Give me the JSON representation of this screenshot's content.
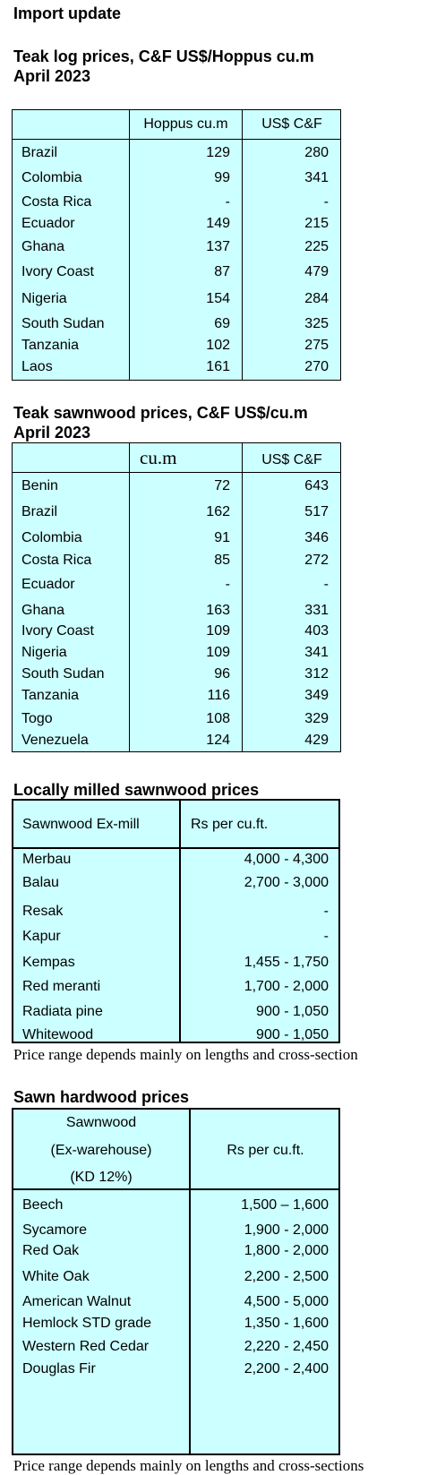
{
  "page_title": "Import update",
  "teak_log": {
    "title": "Teak log prices, C&F US$/Hoppus cu.m",
    "date": "April 2023",
    "col1_header": "Hoppus cu.m",
    "col2_header": "US$ C&F",
    "rows": [
      {
        "country": "Brazil",
        "hoppus": "129",
        "usd": "280"
      },
      {
        "country": "Colombia",
        "hoppus": "99",
        "usd": "341"
      },
      {
        "country": "Costa Rica",
        "hoppus": "-",
        "usd": "-"
      },
      {
        "country": "Ecuador",
        "hoppus": "149",
        "usd": "215"
      },
      {
        "country": "Ghana",
        "hoppus": "137",
        "usd": "225"
      },
      {
        "country": "Ivory Coast",
        "hoppus": "87",
        "usd": "479"
      },
      {
        "country": "Nigeria",
        "hoppus": "154",
        "usd": "284"
      },
      {
        "country": "South Sudan",
        "hoppus": "69",
        "usd": "325"
      },
      {
        "country": "Tanzania",
        "hoppus": "102",
        "usd": "275"
      },
      {
        "country": "Laos",
        "hoppus": "161",
        "usd": "270"
      }
    ]
  },
  "teak_sawn": {
    "title": "Teak sawnwood prices, C&F US$/cu.m",
    "date": "April 2023",
    "col1_header": "cu.m",
    "col2_header": "US$ C&F",
    "rows": [
      {
        "country": "Benin",
        "cum": "72",
        "usd": "643"
      },
      {
        "country": "Brazil",
        "cum": "162",
        "usd": "517"
      },
      {
        "country": "Colombia",
        "cum": "91",
        "usd": "346"
      },
      {
        "country": "Costa Rica",
        "cum": "85",
        "usd": "272"
      },
      {
        "country": "Ecuador",
        "cum": "-",
        "usd": "-"
      },
      {
        "country": "Ghana",
        "cum": "163",
        "usd": "331"
      },
      {
        "country": "Ivory Coast",
        "cum": "109",
        "usd": "403"
      },
      {
        "country": "Nigeria",
        "cum": "109",
        "usd": "341"
      },
      {
        "country": "South Sudan",
        "cum": "96",
        "usd": "312"
      },
      {
        "country": "Tanzania",
        "cum": "116",
        "usd": "349"
      },
      {
        "country": "Togo",
        "cum": "108",
        "usd": "329"
      },
      {
        "country": "Venezuela",
        "cum": "124",
        "usd": "429"
      }
    ]
  },
  "local_milled": {
    "title": "Locally milled sawnwood prices",
    "col0_header": "Sawnwood Ex-mill",
    "col1_header": "Rs per cu.ft.",
    "rows": [
      {
        "species": "Merbau",
        "price": "4,000 - 4,300"
      },
      {
        "species": "Balau",
        "price": "2,700 - 3,000"
      },
      {
        "species": "Resak",
        "price": "-"
      },
      {
        "species": "Kapur",
        "price": "-"
      },
      {
        "species": "Kempas",
        "price": "1,455  - 1,750"
      },
      {
        "species": "Red meranti",
        "price": "1,700 -  2,000"
      },
      {
        "species": "Radiata pine",
        "price": "900 - 1,050"
      },
      {
        "species": "Whitewood",
        "price": "900 - 1,050"
      }
    ],
    "note": "Price range depends mainly on lengths and cross-section"
  },
  "sawn_hardwood": {
    "title": "Sawn hardwood prices",
    "col0_header_lines": [
      "Sawnwood",
      "(Ex-warehouse)",
      "(KD 12%)"
    ],
    "col1_header": "Rs per cu.ft.",
    "rows": [
      {
        "species": "Beech",
        "price": "1,500 – 1,600"
      },
      {
        "species": "Sycamore",
        "price": "1,900 - 2,000"
      },
      {
        "species": "Red Oak",
        "price": "1,800 - 2,000"
      },
      {
        "species": "White Oak",
        "price": "2,200 - 2,500"
      },
      {
        "species": "American Walnut",
        "price": "4,500 - 5,000"
      },
      {
        "species": "Hemlock STD grade",
        "price": "1,350 - 1,600"
      },
      {
        "species": "Western Red Cedar",
        "price": "2,220 - 2,450"
      },
      {
        "species": "Douglas Fir",
        "price": "2,200 - 2,400"
      }
    ],
    "note": "Price range depends mainly on lengths and cross-sections"
  }
}
